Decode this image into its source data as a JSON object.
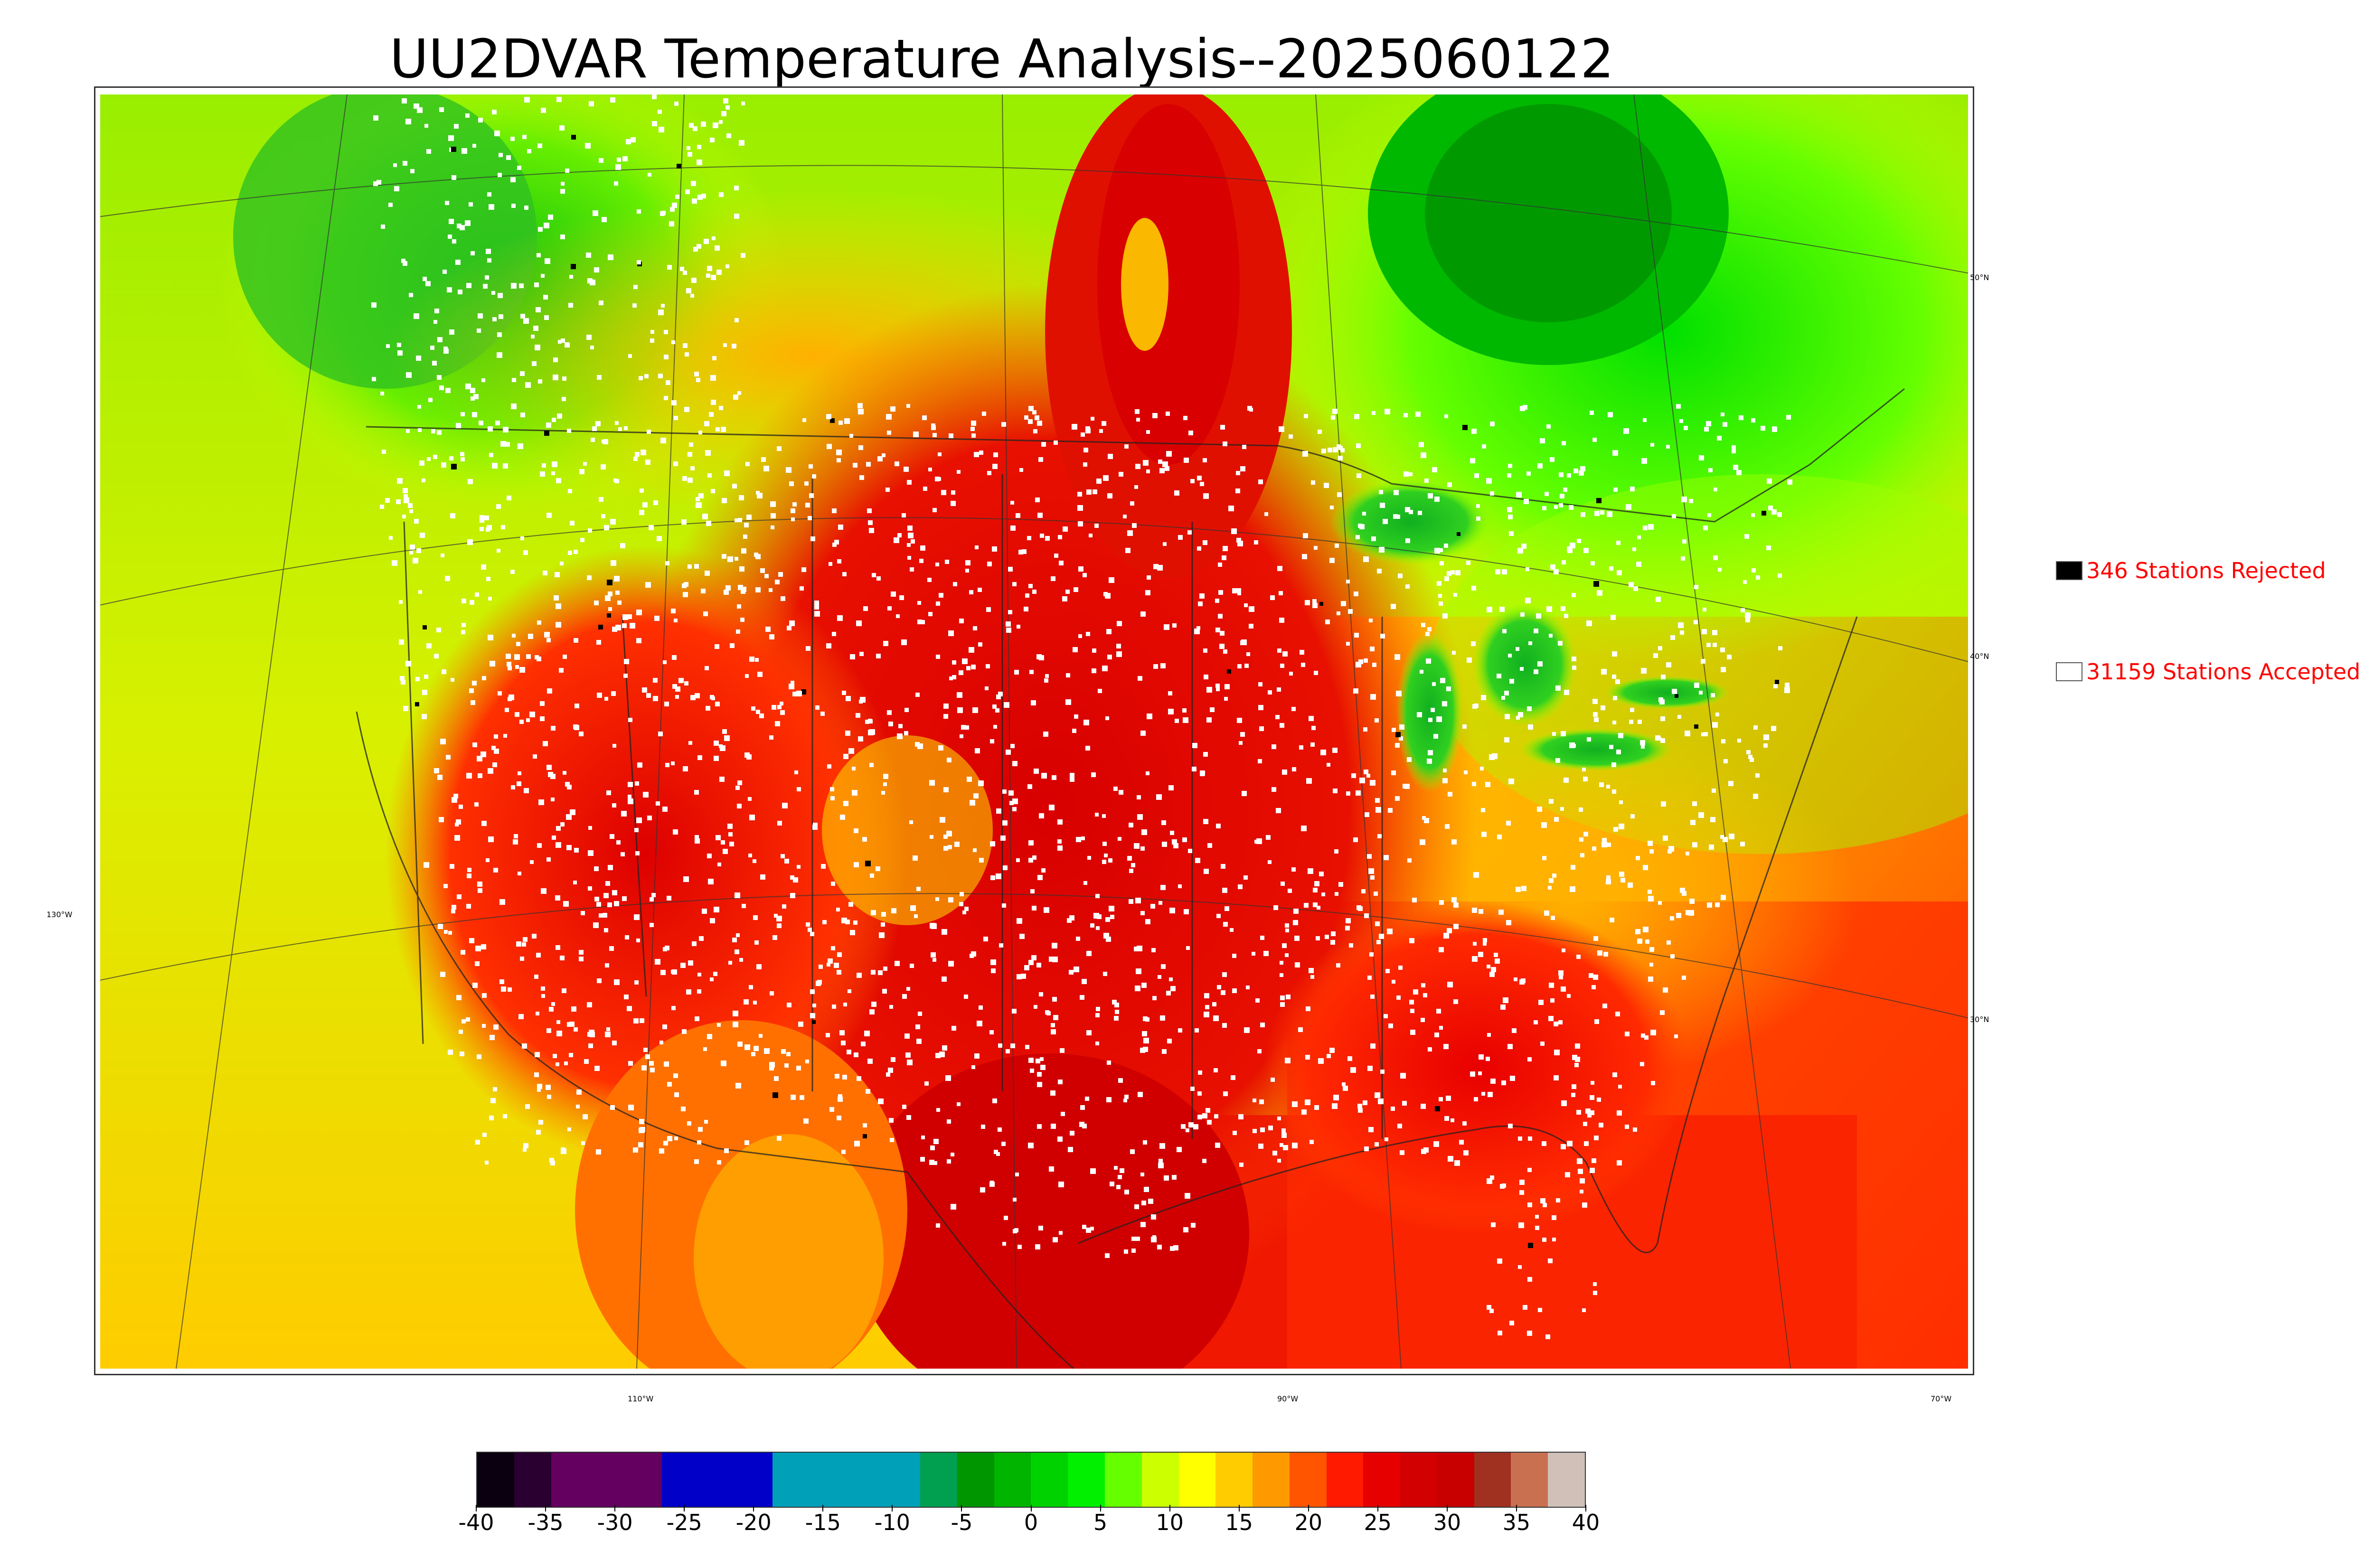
{
  "title": "UU2DVAR Temperature Analysis--2025060122",
  "legend": {
    "rejected": {
      "text": "346 Stations Rejected",
      "color": "#000000"
    },
    "accepted": {
      "text": "31159 Stations Accepted",
      "color": "#ffffff"
    }
  },
  "latitude_labels": [
    "50°N",
    "40°N",
    "30°N"
  ],
  "longitude_labels": [
    "130°W",
    "110°W",
    "90°W",
    "70°W"
  ],
  "colorbar": {
    "ticks": [
      "-40",
      "-35",
      "-30",
      "-25",
      "-20",
      "-15",
      "-10",
      "-5",
      "0",
      "5",
      "10",
      "15",
      "20",
      "25",
      "30",
      "35",
      "40"
    ],
    "min": -40,
    "max": 40,
    "colors": [
      "#0a0010",
      "#2a0030",
      "#640060",
      "#640060",
      "#640060",
      "#0000c8",
      "#0000c8",
      "#0000c8",
      "#00a0b8",
      "#00a0b8",
      "#00a0b8",
      "#00a0b8",
      "#00a050",
      "#009600",
      "#00b400",
      "#00d200",
      "#00f000",
      "#66ff00",
      "#ccff00",
      "#ffff00",
      "#ffcc00",
      "#ff9900",
      "#ff5500",
      "#ff1a00",
      "#e60000",
      "#d20000",
      "#c80000",
      "#a03020",
      "#c87050",
      "#d0c0b8"
    ]
  }
}
